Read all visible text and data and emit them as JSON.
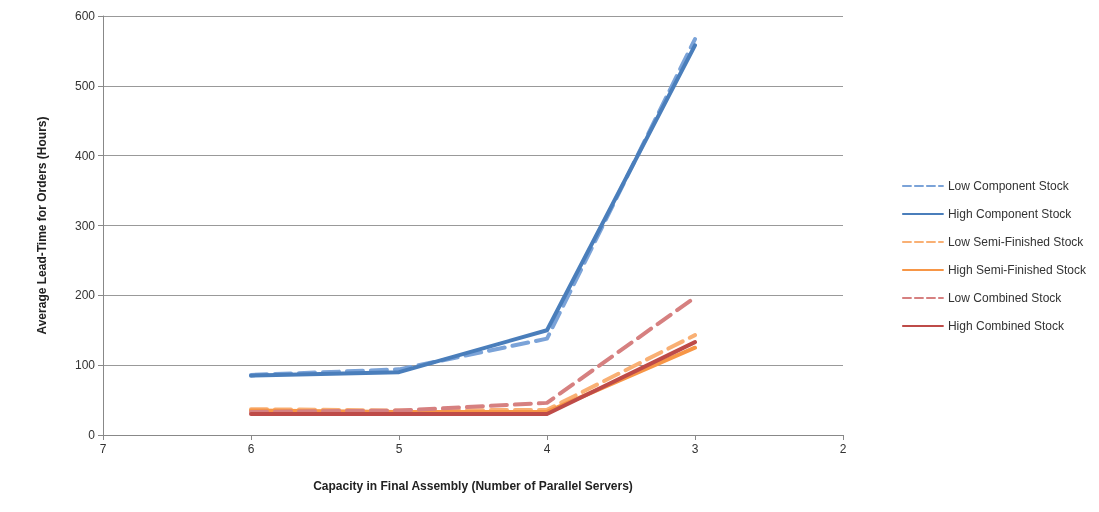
{
  "chart_data": {
    "type": "line",
    "xlabel": "Capacity in Final Assembly (Number of Parallel Servers)",
    "ylabel": "Average Lead-Time for Orders (Hours)",
    "x": [
      6,
      5,
      4,
      3
    ],
    "xlim": [
      7,
      2
    ],
    "xticks": [
      7,
      6,
      5,
      4,
      3,
      2
    ],
    "ylim": [
      0,
      600
    ],
    "yticks": [
      0,
      100,
      200,
      300,
      400,
      500,
      600
    ],
    "grid": "y",
    "legend": "right",
    "marker": "none",
    "series": [
      {
        "name": "Low Component Stock",
        "color": "#7ba3d8",
        "line_style": "dashed",
        "values": [
          86,
          94,
          138,
          567
        ]
      },
      {
        "name": "High Component Stock",
        "color": "#4a7ebb",
        "line_style": "solid",
        "values": [
          85,
          90,
          150,
          558
        ]
      },
      {
        "name": "Low Semi-Finished Stock",
        "color": "#f9b074",
        "line_style": "dashed",
        "values": [
          37,
          35,
          36,
          143
        ]
      },
      {
        "name": "High Semi-Finished Stock",
        "color": "#f79646",
        "line_style": "solid",
        "values": [
          35,
          33,
          33,
          125
        ]
      },
      {
        "name": "Low Combined Stock",
        "color": "#d68080",
        "line_style": "dashed",
        "values": [
          33,
          35,
          46,
          197
        ]
      },
      {
        "name": "High Combined Stock",
        "color": "#be4b48",
        "line_style": "solid",
        "values": [
          30,
          30,
          30,
          133
        ]
      }
    ]
  }
}
